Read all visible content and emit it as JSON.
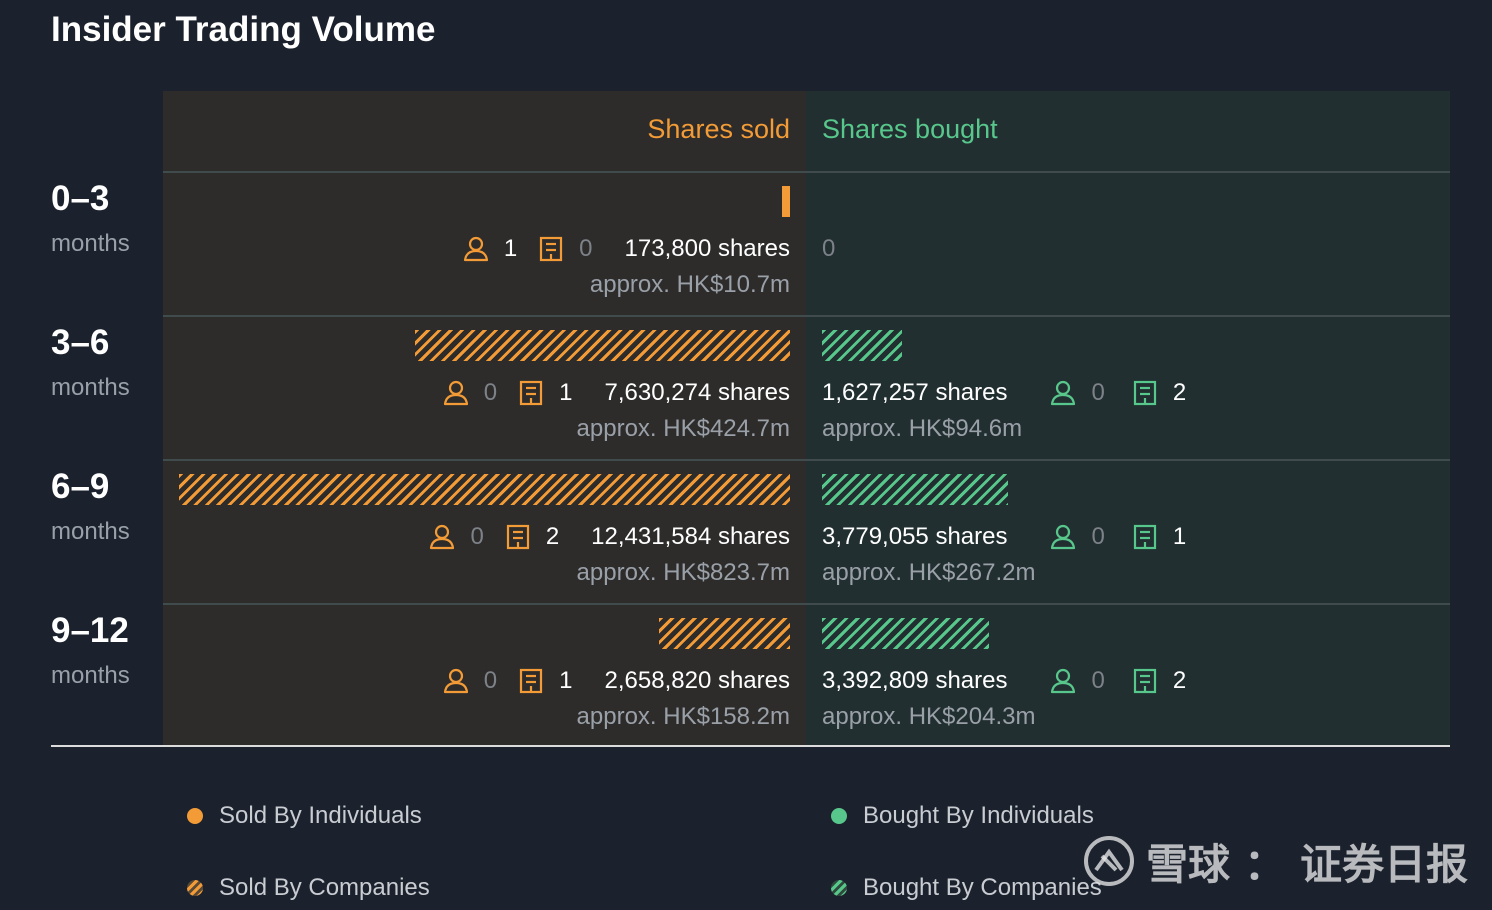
{
  "title": "Insider Trading Volume",
  "colors": {
    "sold": "#f39b36",
    "bought": "#58c78b",
    "background": "#1b222d"
  },
  "icons": {
    "individual": "person-icon",
    "company": "building-icon"
  },
  "chart_data": {
    "type": "bar",
    "orientation": "horizontal-diverging",
    "headers": {
      "sold": "Shares sold",
      "bought": "Shares bought"
    },
    "rows": [
      {
        "period": "0–3",
        "unit": "months",
        "sold": {
          "individuals": "1",
          "companies": "0",
          "shares": 173800,
          "shares_text": "173,800 shares",
          "approx": "approx. HK$10.7m",
          "by": "individuals"
        },
        "bought": {
          "empty": true,
          "zero_text": "0"
        }
      },
      {
        "period": "3–6",
        "unit": "months",
        "sold": {
          "individuals": "0",
          "companies": "1",
          "shares": 7630274,
          "shares_text": "7,630,274 shares",
          "approx": "approx. HK$424.7m",
          "by": "companies"
        },
        "bought": {
          "individuals": "0",
          "companies": "2",
          "shares": 1627257,
          "shares_text": "1,627,257 shares",
          "approx": "approx. HK$94.6m",
          "by": "companies"
        }
      },
      {
        "period": "6–9",
        "unit": "months",
        "sold": {
          "individuals": "0",
          "companies": "2",
          "shares": 12431584,
          "shares_text": "12,431,584 shares",
          "approx": "approx. HK$823.7m",
          "by": "companies"
        },
        "bought": {
          "individuals": "0",
          "companies": "1",
          "shares": 3779055,
          "shares_text": "3,779,055 shares",
          "approx": "approx. HK$267.2m",
          "by": "companies"
        }
      },
      {
        "period": "9–12",
        "unit": "months",
        "sold": {
          "individuals": "0",
          "companies": "1",
          "shares": 2658820,
          "shares_text": "2,658,820 shares",
          "approx": "approx. HK$158.2m",
          "by": "companies"
        },
        "bought": {
          "individuals": "0",
          "companies": "2",
          "shares": 3392809,
          "shares_text": "3,392,809 shares",
          "approx": "approx. HK$204.3m",
          "by": "companies"
        }
      }
    ],
    "legend": [
      {
        "label": "Sold By Individuals",
        "style": "solid",
        "color": "#f39b36"
      },
      {
        "label": "Bought By Individuals",
        "style": "solid",
        "color": "#58c78b"
      },
      {
        "label": "Sold By Companies",
        "style": "hatched",
        "color": "#f39b36"
      },
      {
        "label": "Bought By Companies",
        "style": "hatched",
        "color": "#58c78b"
      }
    ]
  },
  "watermark": {
    "brand": "雪球",
    "separator": "：",
    "account": "证券日报"
  }
}
